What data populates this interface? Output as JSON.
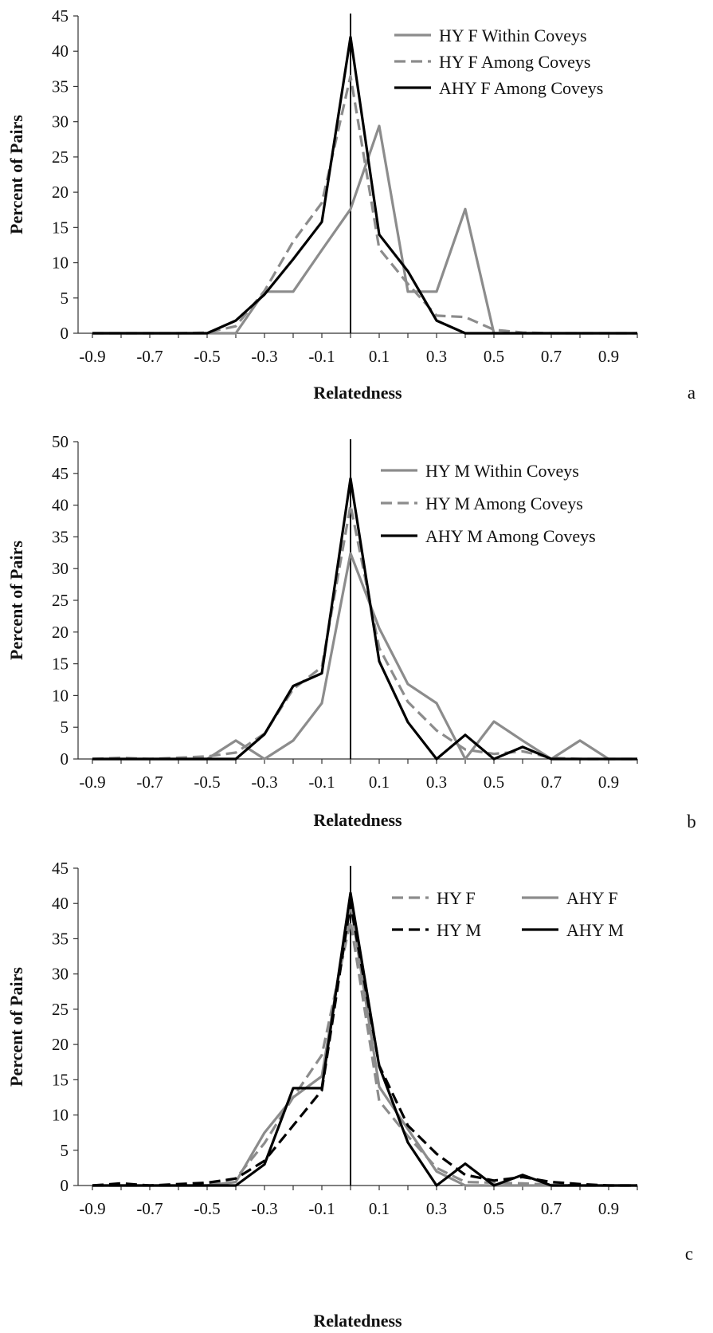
{
  "chart_data": [
    {
      "type": "line",
      "panel_label": "a",
      "xlabel": "Relatedness",
      "ylabel": "Percent of Pairs",
      "xlim": [
        -0.95,
        1.0
      ],
      "ylim": [
        0,
        45
      ],
      "yticks": [
        0,
        5,
        10,
        15,
        20,
        25,
        30,
        35,
        40,
        45
      ],
      "xtick_labels": [
        "-0.9",
        "-0.7",
        "-0.5",
        "-0.3",
        "-0.1",
        "0.1",
        "0.3",
        "0.5",
        "0.7",
        "0.9"
      ],
      "reference_line_x": 0.0,
      "grid": false,
      "legend": "top-right",
      "x": [
        -0.9,
        -0.8,
        -0.7,
        -0.6,
        -0.5,
        -0.4,
        -0.3,
        -0.2,
        -0.1,
        0.0,
        0.1,
        0.2,
        0.3,
        0.4,
        0.5,
        0.6,
        0.7,
        0.8,
        0.9,
        1.0
      ],
      "series": [
        {
          "name": "HY F Within Coveys",
          "color": "#8c8c8c",
          "dash": "solid",
          "values": [
            0,
            0,
            0,
            0,
            0,
            0,
            5.9,
            5.9,
            11.8,
            17.6,
            29.4,
            5.9,
            5.9,
            17.6,
            0,
            0,
            0,
            0,
            0,
            0
          ]
        },
        {
          "name": "HY F Among Coveys",
          "color": "#8c8c8c",
          "dash": "dashed",
          "values": [
            0,
            0,
            0,
            0,
            0.1,
            1.0,
            6.0,
            13.0,
            18.5,
            36.5,
            12.0,
            7.0,
            2.5,
            2.3,
            0.5,
            0.1,
            0,
            0,
            0,
            0
          ]
        },
        {
          "name": "AHY F Among Coveys",
          "color": "#000000",
          "dash": "solid",
          "values": [
            0,
            0,
            0,
            0,
            0,
            1.8,
            5.5,
            10.5,
            15.8,
            42.0,
            14.0,
            8.8,
            1.8,
            0,
            0,
            0,
            0,
            0,
            0,
            0
          ]
        }
      ]
    },
    {
      "type": "line",
      "panel_label": "b",
      "xlabel": "Relatedness",
      "ylabel": "Percent of Pairs",
      "xlim": [
        -0.95,
        1.0
      ],
      "ylim": [
        0,
        50
      ],
      "yticks": [
        0,
        5,
        10,
        15,
        20,
        25,
        30,
        35,
        40,
        45,
        50
      ],
      "xtick_labels": [
        "-0.9",
        "-0.7",
        "-0.5",
        "-0.3",
        "-0.1",
        "0.1",
        "0.3",
        "0.5",
        "0.7",
        "0.9"
      ],
      "reference_line_x": 0.0,
      "grid": false,
      "legend": "top-right",
      "x": [
        -0.9,
        -0.8,
        -0.7,
        -0.6,
        -0.5,
        -0.4,
        -0.3,
        -0.2,
        -0.1,
        0.0,
        0.1,
        0.2,
        0.3,
        0.4,
        0.5,
        0.6,
        0.7,
        0.8,
        0.9,
        1.0
      ],
      "series": [
        {
          "name": "HY M Within Coveys",
          "color": "#8c8c8c",
          "dash": "solid",
          "values": [
            0,
            0,
            0,
            0,
            0,
            2.9,
            0,
            2.9,
            8.8,
            32.4,
            20.6,
            11.8,
            8.8,
            0,
            5.9,
            2.9,
            0,
            2.9,
            0,
            0
          ]
        },
        {
          "name": "HY M Among Coveys",
          "color": "#8c8c8c",
          "dash": "dashed",
          "values": [
            0,
            0.2,
            0,
            0.2,
            0.4,
            1.0,
            4.0,
            11.0,
            14.5,
            40.0,
            17.5,
            9.0,
            4.5,
            1.5,
            0.8,
            1.2,
            0.2,
            0,
            0,
            0
          ]
        },
        {
          "name": "AHY M Among Coveys",
          "color": "#000000",
          "dash": "solid",
          "values": [
            0,
            0,
            0,
            0,
            0,
            0,
            3.9,
            11.5,
            13.5,
            44.2,
            15.4,
            5.8,
            0,
            3.8,
            0,
            1.9,
            0,
            0,
            0,
            0
          ]
        }
      ]
    },
    {
      "type": "line",
      "panel_label": "c",
      "xlabel": "Relatedness",
      "ylabel": "Percent of Pairs",
      "xlim": [
        -0.95,
        1.0
      ],
      "ylim": [
        0,
        45
      ],
      "yticks": [
        0,
        5,
        10,
        15,
        20,
        25,
        30,
        35,
        40,
        45
      ],
      "xtick_labels": [
        "-0.9",
        "-0.7",
        "-0.5",
        "-0.3",
        "-0.1",
        "0.1",
        "0.3",
        "0.5",
        "0.7",
        "0.9"
      ],
      "reference_line_x": 0.0,
      "grid": false,
      "legend": "top-right",
      "x": [
        -0.9,
        -0.8,
        -0.7,
        -0.6,
        -0.5,
        -0.4,
        -0.3,
        -0.2,
        -0.1,
        0.0,
        0.1,
        0.2,
        0.3,
        0.4,
        0.5,
        0.6,
        0.7,
        0.8,
        0.9,
        1.0
      ],
      "series": [
        {
          "name": "HY F",
          "color": "#8c8c8c",
          "dash": "dashed",
          "values": [
            0,
            0,
            0,
            0,
            0.1,
            1.0,
            6.0,
            12.5,
            18.5,
            37.5,
            12.0,
            7.0,
            2.5,
            0.5,
            0.4,
            0.3,
            0.1,
            0,
            0,
            0
          ]
        },
        {
          "name": "AHY F",
          "color": "#8c8c8c",
          "dash": "solid",
          "values": [
            0,
            0,
            0,
            0,
            0,
            0.5,
            7.5,
            12.5,
            15.5,
            40.0,
            14.0,
            8.0,
            2.0,
            0,
            0,
            0,
            0,
            0,
            0,
            0
          ]
        },
        {
          "name": "HY M",
          "color": "#000000",
          "dash": "dashed",
          "values": [
            0,
            0.3,
            0,
            0.2,
            0.4,
            1.0,
            3.5,
            8.5,
            13.5,
            40.0,
            17.0,
            8.5,
            4.5,
            1.5,
            0.7,
            1.2,
            0.5,
            0.2,
            0,
            0
          ]
        },
        {
          "name": "AHY M",
          "color": "#000000",
          "dash": "solid",
          "values": [
            0,
            0,
            0,
            0,
            0,
            0,
            3.0,
            13.8,
            13.8,
            41.5,
            16.9,
            6.1,
            0,
            3.1,
            0,
            1.5,
            0,
            0,
            0,
            0
          ]
        }
      ]
    }
  ]
}
